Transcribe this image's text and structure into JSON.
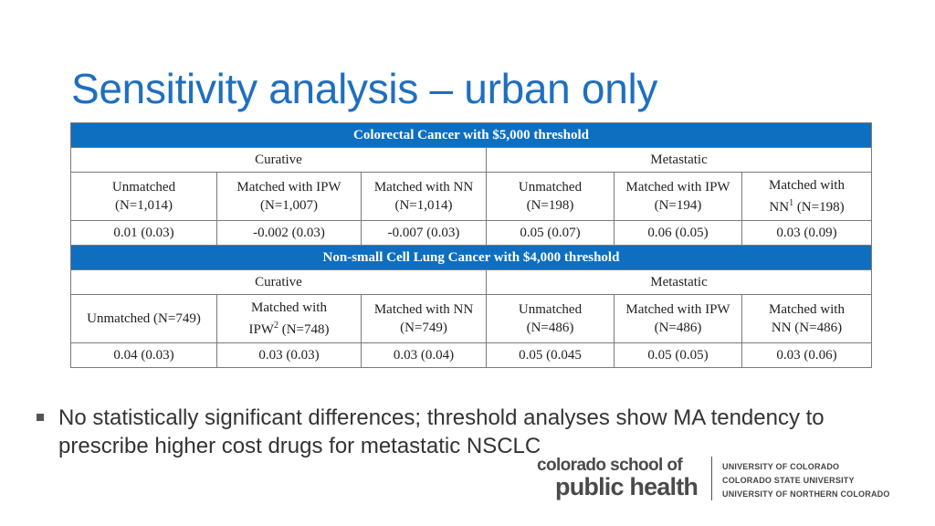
{
  "slide": {
    "title": "Sensitivity analysis – urban only",
    "bullet": "No statistically significant differences; threshold analyses show MA tendency to prescribe higher cost drugs for metastatic NSCLC"
  },
  "table": {
    "colorectal": {
      "banner": "Colorectal Cancer with $5,000 threshold",
      "group_curative": "Curative",
      "group_metastatic": "Metastatic",
      "cols": [
        {
          "l1": "Unmatched",
          "l2": "(N=1,014)"
        },
        {
          "l1": "Matched with IPW",
          "l2": "(N=1,007)"
        },
        {
          "l1": "Matched with NN",
          "l2": "(N=1,014)"
        },
        {
          "l1": "Unmatched",
          "l2": "(N=198)"
        },
        {
          "l1": "Matched with IPW",
          "l2": "(N=194)"
        },
        {
          "l1": "Matched with",
          "l2a": "NN",
          "sup": "1",
          "l2b": " (N=198)"
        }
      ],
      "values": [
        "0.01 (0.03)",
        "-0.002 (0.03)",
        "-0.007 (0.03)",
        "0.05 (0.07)",
        "0.06 (0.05)",
        "0.03 (0.09)"
      ]
    },
    "nsclc": {
      "banner": "Non-small Cell Lung Cancer with $4,000 threshold",
      "group_curative": "Curative",
      "group_metastatic": "Metastatic",
      "cols": [
        {
          "l1": "Unmatched (N=749)"
        },
        {
          "l1": "Matched with",
          "l2a": "IPW",
          "sup": "2",
          "l2b": " (N=748)"
        },
        {
          "l1": "Matched with NN",
          "l2": "(N=749)"
        },
        {
          "l1": "Unmatched",
          "l2": "(N=486)"
        },
        {
          "l1": "Matched with IPW",
          "l2": "(N=486)"
        },
        {
          "l1": "Matched with",
          "l2": "NN (N=486)"
        }
      ],
      "values": [
        "0.04 (0.03)",
        "0.03 (0.03)",
        "0.03 (0.04)",
        "0.05 (0.045",
        "0.05 (0.05)",
        "0.03 (0.06)"
      ]
    }
  },
  "logo": {
    "line1": "colorado school of",
    "line2": "public health",
    "universities": [
      "UNIVERSITY OF COLORADO",
      "COLORADO STATE UNIVERSITY",
      "UNIVERSITY OF NORTHERN COLORADO"
    ]
  },
  "colors": {
    "title": "#1f6fbf",
    "banner": "#0e6fc1",
    "text": "#333333"
  }
}
